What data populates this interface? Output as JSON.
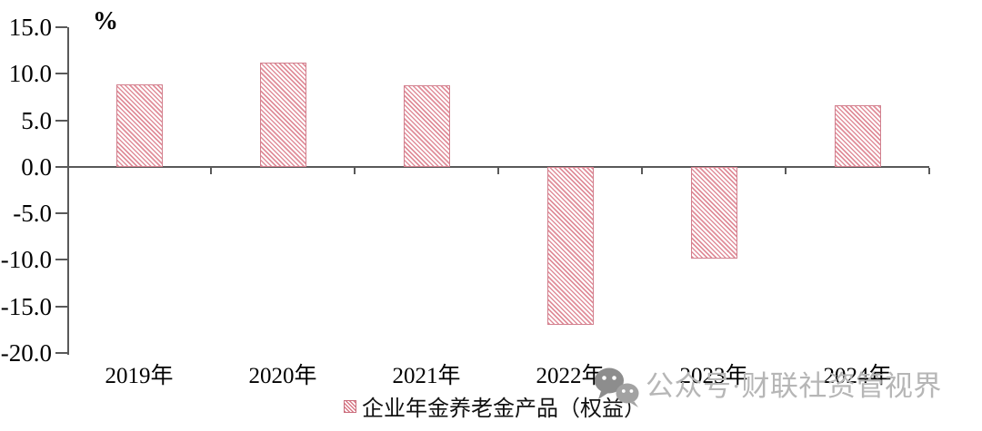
{
  "chart_data": {
    "type": "bar",
    "title": "",
    "unit_label": "%",
    "categories": [
      "2019年",
      "2020年",
      "2021年",
      "2022年",
      "2023年",
      "2024年"
    ],
    "values": [
      8.9,
      11.2,
      8.8,
      -17.0,
      -9.9,
      6.6
    ],
    "series_name": "企业年金养老金产品（权益）",
    "ylim": [
      -20,
      15
    ],
    "ytick_interval": 5,
    "ytick_labels": [
      "15.0",
      "10.0",
      "5.0",
      "0.0",
      "-5.0",
      "-10.0",
      "-15.0",
      "-20.0"
    ],
    "grid": false,
    "legend_position": "bottom-center",
    "bar_fill_style": "diagonal-hatch",
    "bar_color": "#e08e9a",
    "bar_border_color": "#d2808e",
    "axis_color": "#595959"
  },
  "legend": {
    "label": "企业年金养老金产品（权益）",
    "marker": "hatched-square"
  },
  "watermark": {
    "icon": "wechat-icon",
    "text": "公众号·财联社资管视界",
    "color": "#b6b6b6"
  }
}
